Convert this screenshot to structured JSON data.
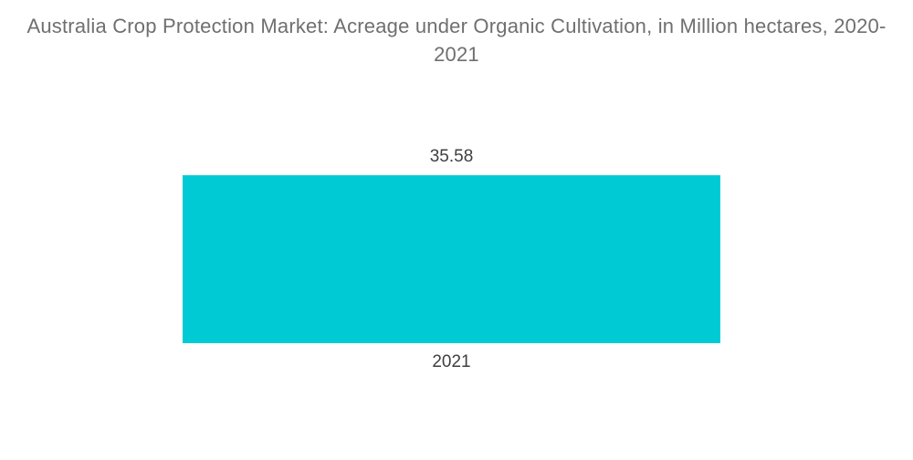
{
  "chart": {
    "title": "Australia Crop Protection Market: Acreage under Organic Cultivation, in Million hectares, 2020-2021",
    "value_label": "35.58",
    "category_label": "2021",
    "bar_color": "#00cbd5",
    "title_color": "#6f6f6f",
    "label_color": "#3f3f3f",
    "background_color": "#ffffff"
  },
  "chart_data": {
    "type": "bar",
    "orientation": "vertical",
    "title": "Australia Crop Protection Market: Acreage under Organic Cultivation, in Million hectares, 2020-2021",
    "categories": [
      "2021"
    ],
    "values": [
      35.58
    ],
    "series": [
      {
        "name": "Acreage under Organic Cultivation (Million hectares)",
        "values": [
          35.58
        ]
      }
    ],
    "xlabel": "",
    "ylabel": "",
    "data_labels": true,
    "axes_visible": false,
    "grid": false,
    "legend": false,
    "bar_color": "#00cbd5"
  }
}
